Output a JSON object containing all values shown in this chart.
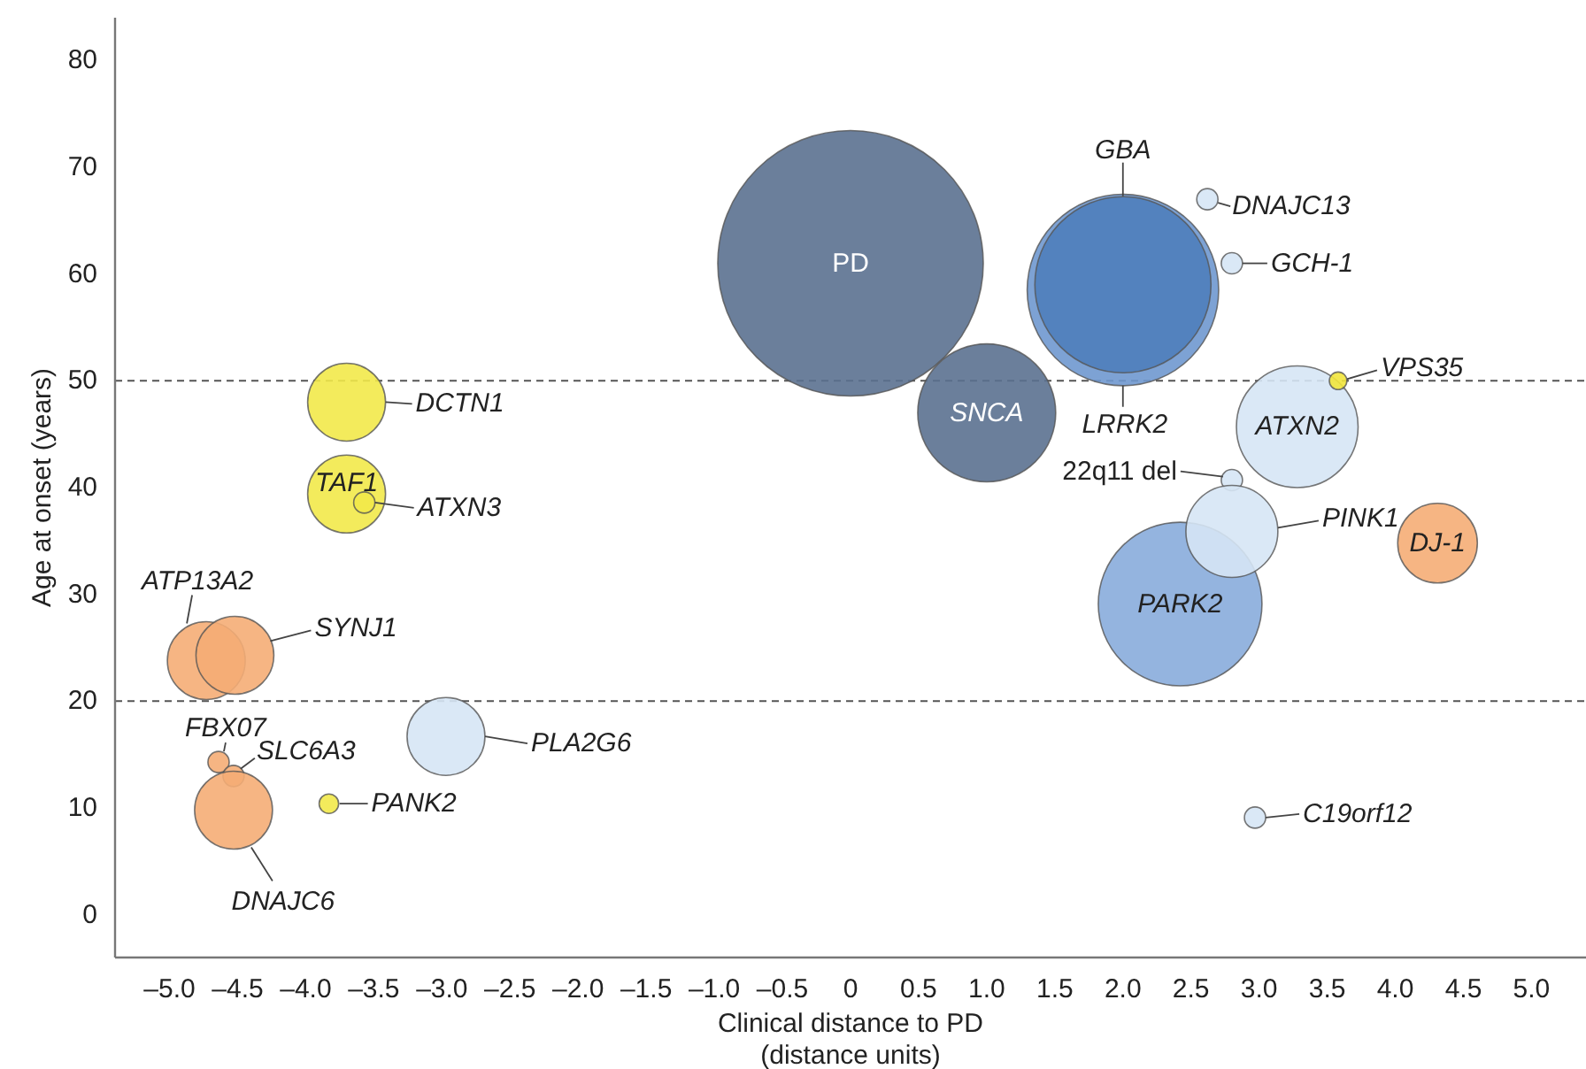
{
  "chart_data": {
    "type": "bubble",
    "xlabel": "Clinical distance to PD\n(distance units)",
    "ylabel": "Age at onset (years)",
    "xlim": [
      -5.4,
      5.4
    ],
    "ylim": [
      -4,
      84
    ],
    "xticks": [
      {
        "value": -5,
        "label": "–5.0"
      },
      {
        "value": -4.5,
        "label": "–4.5"
      },
      {
        "value": -4,
        "label": "–4.0"
      },
      {
        "value": -3.5,
        "label": "–3.5"
      },
      {
        "value": -3,
        "label": "–3.0"
      },
      {
        "value": -2.5,
        "label": "–2.5"
      },
      {
        "value": -2,
        "label": "–2.0"
      },
      {
        "value": -1.5,
        "label": "–1.5"
      },
      {
        "value": -1,
        "label": "–1.0"
      },
      {
        "value": -0.5,
        "label": "–0.5"
      },
      0,
      0.5,
      {
        "value": 1,
        "label": "1.0"
      },
      1.5,
      {
        "value": 2,
        "label": "2.0"
      },
      2.5,
      {
        "value": 3,
        "label": "3.0"
      },
      3.5,
      {
        "value": 4,
        "label": "4.0"
      },
      4.5,
      {
        "value": 5,
        "label": "5.0"
      }
    ],
    "yticks": [
      0,
      10,
      20,
      30,
      40,
      50,
      60,
      70,
      80
    ],
    "grid": false,
    "ref_lines": [
      {
        "axis": "y",
        "value": 50,
        "line_style": "dashed",
        "color": "#555555"
      },
      {
        "axis": "y",
        "value": 20,
        "line_style": "dashed",
        "color": "#555555"
      }
    ],
    "series": [
      {
        "name": "PD",
        "color": "#5b7190",
        "x": [
          0
        ],
        "values": [
          61
        ],
        "sizes": [
          1
        ]
      },
      {
        "name": "SNCA",
        "color": "#5b7190",
        "x": [
          1.0
        ],
        "values": [
          47
        ],
        "sizes": [
          0.27
        ]
      },
      {
        "name": "LRRK2",
        "color": "#6f98cf",
        "x": [
          2.0
        ],
        "values": [
          58.5
        ],
        "sizes": [
          0.52
        ]
      },
      {
        "name": "GBA",
        "color": "#4f80bd",
        "x": [
          2.0
        ],
        "values": [
          59
        ],
        "sizes": [
          0.44
        ]
      },
      {
        "name": "DNAJC13",
        "color": "#d6e6f5",
        "x": [
          2.62
        ],
        "values": [
          67
        ],
        "sizes": [
          0.0064
        ]
      },
      {
        "name": "GCH-1",
        "color": "#d6e6f5",
        "x": [
          2.8
        ],
        "values": [
          61
        ],
        "sizes": [
          0.0064
        ]
      },
      {
        "name": "ATXN2",
        "color": "#d6e6f5",
        "x": [
          3.28
        ],
        "values": [
          45.7
        ],
        "sizes": [
          0.21
        ]
      },
      {
        "name": "VPS35",
        "color": "#f2e63c",
        "x": [
          3.58
        ],
        "values": [
          50
        ],
        "sizes": [
          0.0044
        ]
      },
      {
        "name": "22q11 del",
        "color": "#d6e6f5",
        "x": [
          2.8
        ],
        "values": [
          40.7
        ],
        "sizes": [
          0.0064
        ]
      },
      {
        "name": "PARK2",
        "color": "#88acdb",
        "x": [
          2.42
        ],
        "values": [
          29.1
        ],
        "sizes": [
          0.38
        ]
      },
      {
        "name": "PINK1",
        "color": "#d6e6f5",
        "x": [
          2.8
        ],
        "values": [
          35.9
        ],
        "sizes": [
          0.12
        ]
      },
      {
        "name": "DJ-1",
        "color": "#f5ad76",
        "x": [
          4.31
        ],
        "values": [
          34.8
        ],
        "sizes": [
          0.09
        ]
      },
      {
        "name": "C19orf12",
        "color": "#d6e6f5",
        "x": [
          2.97
        ],
        "values": [
          9.1
        ],
        "sizes": [
          0.0064
        ]
      },
      {
        "name": "DCTN1",
        "color": "#f2e94a",
        "x": [
          -3.7
        ],
        "values": [
          48
        ],
        "sizes": [
          0.086
        ]
      },
      {
        "name": "TAF1",
        "color": "#f2e94a",
        "x": [
          -3.7
        ],
        "values": [
          39.4
        ],
        "sizes": [
          0.086
        ]
      },
      {
        "name": "ATXN3",
        "color": "#f2e94a",
        "x": [
          -3.57
        ],
        "values": [
          38.6
        ],
        "sizes": [
          0.0064
        ]
      },
      {
        "name": "ATP13A2",
        "color": "#f5ad76",
        "x": [
          -4.73
        ],
        "values": [
          23.8
        ],
        "sizes": [
          0.086
        ]
      },
      {
        "name": "SYNJ1",
        "color": "#f5ad76",
        "x": [
          -4.52
        ],
        "values": [
          24.3
        ],
        "sizes": [
          0.086
        ]
      },
      {
        "name": "FBX07",
        "color": "#f5ad76",
        "x": [
          -4.64
        ],
        "values": [
          14.3
        ],
        "sizes": [
          0.0064
        ]
      },
      {
        "name": "SLC6A3",
        "color": "#f5ad76",
        "x": [
          -4.53
        ],
        "values": [
          13
        ],
        "sizes": [
          0.0064
        ]
      },
      {
        "name": "DNAJC6",
        "color": "#f5ad76",
        "x": [
          -4.53
        ],
        "values": [
          9.8
        ],
        "sizes": [
          0.086
        ]
      },
      {
        "name": "PANK2",
        "color": "#f2e94a",
        "x": [
          -3.83
        ],
        "values": [
          10.4
        ],
        "sizes": [
          0.0054
        ]
      },
      {
        "name": "PLA2G6",
        "color": "#d6e6f5",
        "x": [
          -2.97
        ],
        "values": [
          16.7
        ],
        "sizes": [
          0.086
        ]
      }
    ]
  }
}
